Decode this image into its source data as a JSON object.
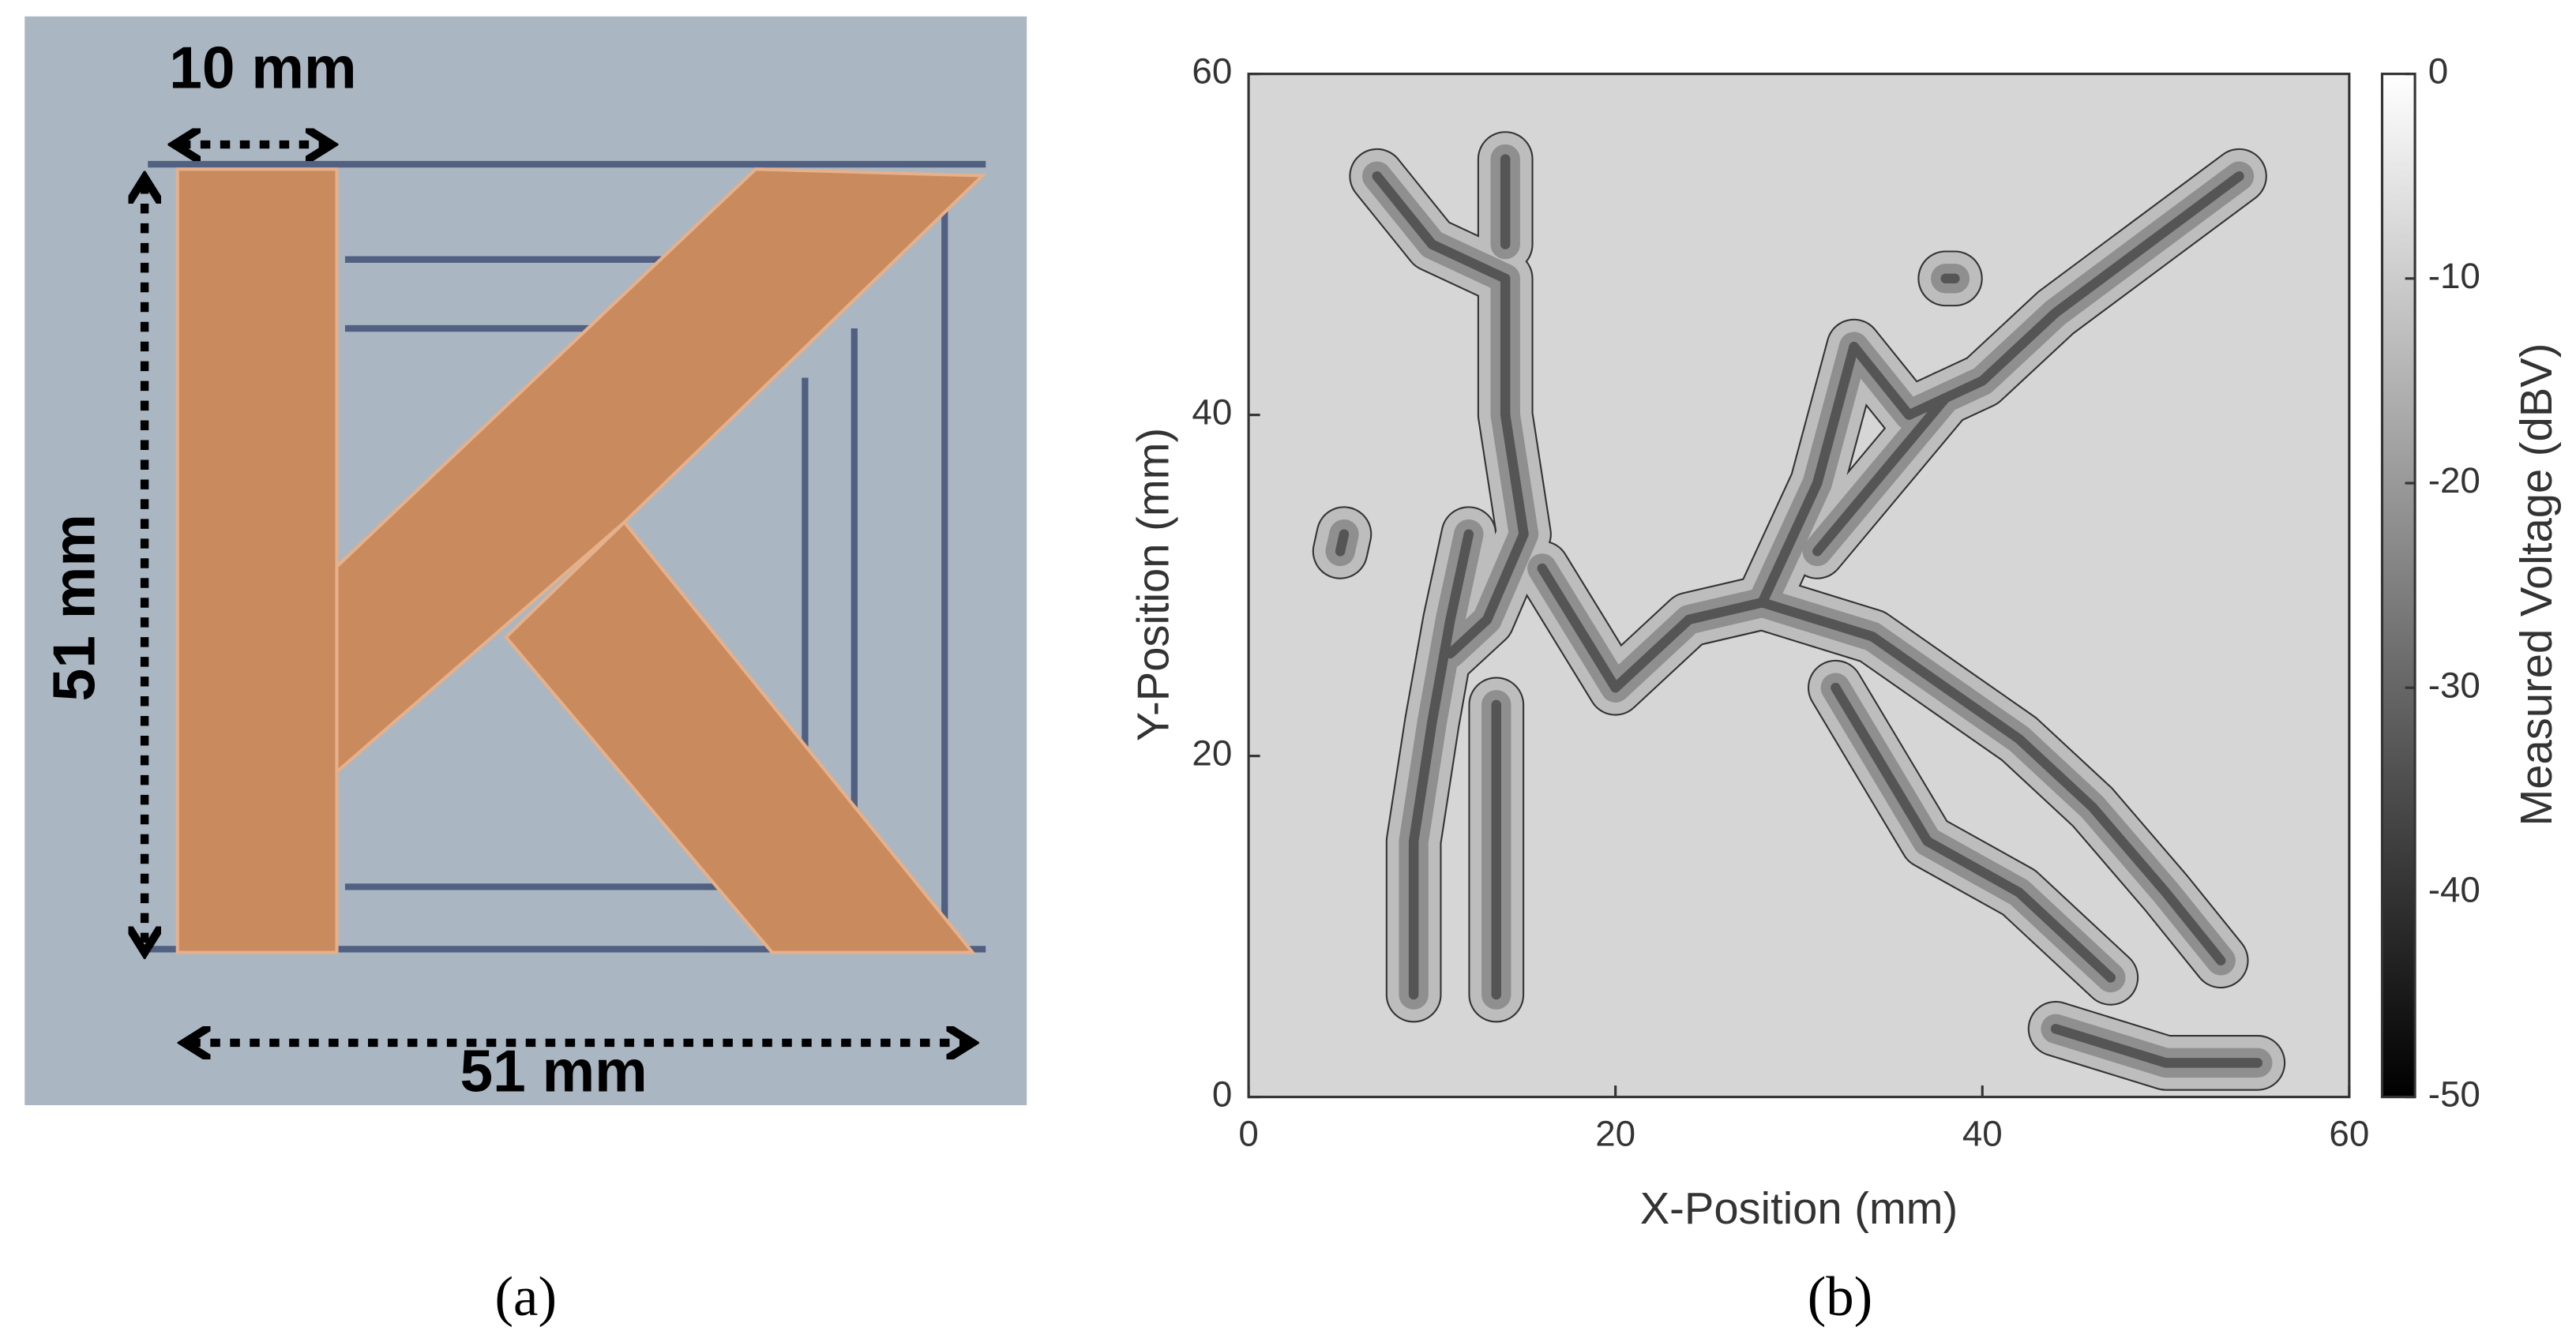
{
  "figure": {
    "panel_a": {
      "label": "(a)",
      "annotations": [
        "10 mm",
        "51 mm",
        "51 mm"
      ]
    },
    "panel_b": {
      "label": "(b)"
    }
  },
  "chart_data": {
    "type": "contour",
    "xlabel": "X-Position (mm)",
    "ylabel": "Y-Position (mm)",
    "xlim": [
      0,
      60
    ],
    "ylim": [
      0,
      60
    ],
    "xticks": [
      0,
      20,
      40,
      60
    ],
    "yticks": [
      0,
      20,
      40,
      60
    ],
    "colorbar": {
      "label": "Measured Voltage (dBV)",
      "lim": [
        -50,
        0
      ],
      "ticks": [
        0,
        -10,
        -20,
        -30,
        -40,
        -50
      ]
    }
  }
}
